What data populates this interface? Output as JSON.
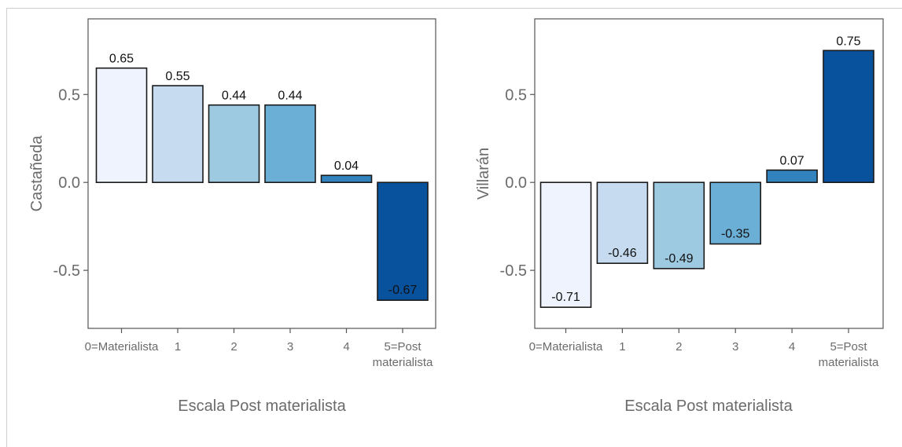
{
  "colors": {
    "panel_border": "#555555",
    "bar_outline": "#1a1a1a",
    "text_axis": "#6b6b6b"
  },
  "chart_data": [
    {
      "type": "bar",
      "title": "",
      "xlabel": "Escala Post materialista",
      "ylabel": "Castañeda",
      "categories": [
        "0=Materialista",
        "1",
        "2",
        "3",
        "4",
        "5=Post materialista"
      ],
      "values": [
        0.65,
        0.55,
        0.44,
        0.44,
        0.04,
        -0.67
      ],
      "value_labels": [
        "0.65",
        "0.55",
        "0.44",
        "0.44",
        "0.04",
        "-0.67"
      ],
      "bar_colors": [
        "#eef3fd",
        "#c6dbef",
        "#9ecae1",
        "#6baed6",
        "#3182bd",
        "#08519c"
      ],
      "ylim": [
        -0.83,
        0.93
      ],
      "yticks": [
        -0.5,
        0.0,
        0.5
      ],
      "ytick_labels": [
        "-0.5",
        "0.0",
        "0.5"
      ],
      "grid": false,
      "legend": "none"
    },
    {
      "type": "bar",
      "title": "",
      "xlabel": "Escala Post materialista",
      "ylabel": "Villarán",
      "categories": [
        "0=Materialista",
        "1",
        "2",
        "3",
        "4",
        "5=Post materialista"
      ],
      "values": [
        -0.71,
        -0.46,
        -0.49,
        -0.35,
        0.07,
        0.75
      ],
      "value_labels": [
        "-0.71",
        "-0.46",
        "-0.49",
        "-0.35",
        "0.07",
        "0.75"
      ],
      "bar_colors": [
        "#eef3fd",
        "#c6dbef",
        "#9ecae1",
        "#6baed6",
        "#3182bd",
        "#08519c"
      ],
      "ylim": [
        -0.83,
        0.93
      ],
      "yticks": [
        -0.5,
        0.0,
        0.5
      ],
      "ytick_labels": [
        "-0.5",
        "0.0",
        "0.5"
      ],
      "grid": false,
      "legend": "none"
    }
  ]
}
